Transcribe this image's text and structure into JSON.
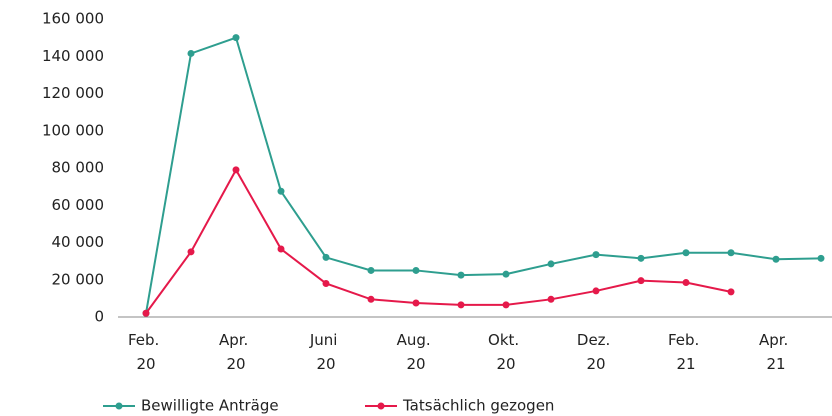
{
  "chart_data": {
    "type": "line",
    "categories": [
      "Feb. 20",
      null,
      "Apr. 20",
      null,
      "Juni 20",
      null,
      "Aug. 20",
      null,
      "Okt. 20",
      null,
      "Dez. 20",
      null,
      "Feb. 21",
      null,
      "Apr. 21",
      null
    ],
    "series": [
      {
        "name": "Bewilligte Anträge",
        "color": "#2e9e8f",
        "values": [
          2000,
          141500,
          150000,
          67500,
          32000,
          25000,
          25000,
          22500,
          23000,
          28500,
          33500,
          31500,
          34500,
          34500,
          31000,
          31500
        ]
      },
      {
        "name": "Tatsächlich gezogen",
        "color": "#e5194a",
        "values": [
          2000,
          35000,
          79000,
          36500,
          18000,
          9500,
          7500,
          6500,
          6500,
          9500,
          14000,
          19500,
          18500,
          13500,
          null,
          null
        ]
      }
    ],
    "ylim": [
      0,
      160000
    ],
    "yticks": [
      {
        "value": 0,
        "label": "0"
      },
      {
        "value": 20000,
        "label": "20 000"
      },
      {
        "value": 40000,
        "label": "40 000"
      },
      {
        "value": 60000,
        "label": "60 000"
      },
      {
        "value": 80000,
        "label": "80 000"
      },
      {
        "value": 100000,
        "label": "100 000"
      },
      {
        "value": 120000,
        "label": "120 000"
      },
      {
        "value": 140000,
        "label": "140 000"
      },
      {
        "value": 160000,
        "label": "160 000"
      }
    ],
    "grid": false,
    "legend": "bottom"
  }
}
